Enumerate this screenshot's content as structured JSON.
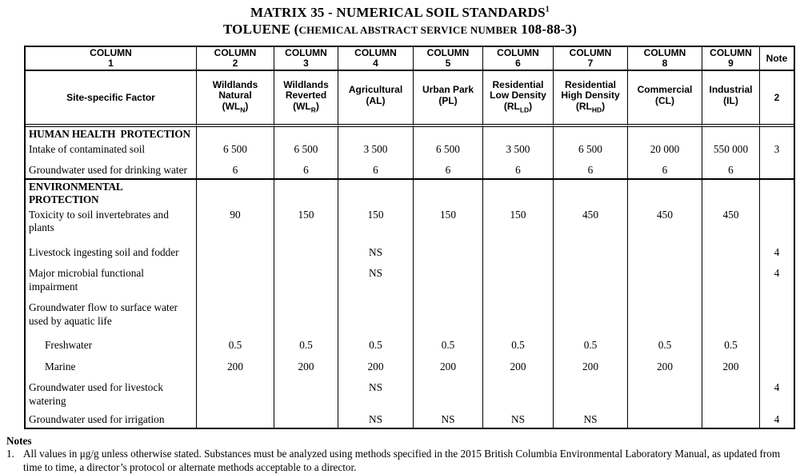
{
  "title": {
    "line1": "MATRIX 35 - NUMERICAL SOIL STANDARDS",
    "line1_superscript": "1",
    "line2_prefix": "TOLUENE (",
    "line2_smallcaps": "CHEMICAL ABSTRACT SERVICE NUMBER",
    "line2_suffix": " 108-88-3)"
  },
  "table": {
    "header_row1": [
      {
        "label": "COLUMN",
        "num": "1"
      },
      {
        "label": "COLUMN",
        "num": "2"
      },
      {
        "label": "COLUMN",
        "num": "3"
      },
      {
        "label": "COLUMN",
        "num": "4"
      },
      {
        "label": "COLUMN",
        "num": "5"
      },
      {
        "label": "COLUMN",
        "num": "6"
      },
      {
        "label": "COLUMN",
        "num": "7"
      },
      {
        "label": "COLUMN",
        "num": "8"
      },
      {
        "label": "COLUMN",
        "num": "9"
      },
      {
        "label": "Note",
        "num": ""
      }
    ],
    "header_row2": {
      "factor_label": "Site-specific Factor",
      "uses": [
        {
          "name": "Wildlands Natural",
          "abbr_pre": "(WL",
          "abbr_sub": "N",
          "abbr_post": ")"
        },
        {
          "name": "Wildlands Reverted",
          "abbr_pre": "(WL",
          "abbr_sub": "R",
          "abbr_post": ")"
        },
        {
          "name": "Agricultural",
          "abbr_pre": "(AL",
          "abbr_sub": "",
          "abbr_post": ")"
        },
        {
          "name": "Urban Park",
          "abbr_pre": "(PL",
          "abbr_sub": "",
          "abbr_post": ")"
        },
        {
          "name": "Residential Low Density",
          "abbr_pre": "(RL",
          "abbr_sub": "LD",
          "abbr_post": ")"
        },
        {
          "name": "Residential High Density",
          "abbr_pre": "(RL",
          "abbr_sub": "HD",
          "abbr_post": ")"
        },
        {
          "name": "Commercial",
          "abbr_pre": "(CL",
          "abbr_sub": "",
          "abbr_post": ")"
        },
        {
          "name": "Industrial",
          "abbr_pre": "(IL",
          "abbr_sub": "",
          "abbr_post": ")"
        }
      ],
      "note": "2"
    },
    "rows": [
      {
        "type": "section",
        "label": "HUMAN HEALTH  PROTECTION"
      },
      {
        "type": "factor",
        "label": "Intake of contaminated soil",
        "values": [
          "6 500",
          "6 500",
          "3 500",
          "6 500",
          "3 500",
          "6 500",
          "20 000",
          "550 000"
        ],
        "note": "3"
      },
      {
        "type": "factor",
        "label": "Groundwater used for drinking water",
        "values": [
          "6",
          "6",
          "6",
          "6",
          "6",
          "6",
          "6",
          "6"
        ],
        "note": ""
      },
      {
        "type": "section",
        "label": "ENVIRONMENTAL\nPROTECTION"
      },
      {
        "type": "factor",
        "label": "Toxicity to soil invertebrates and plants",
        "values": [
          "90",
          "150",
          "150",
          "150",
          "150",
          "450",
          "450",
          "450"
        ],
        "note": ""
      },
      {
        "type": "factor",
        "label": "Livestock ingesting soil and fodder",
        "values": [
          "",
          "",
          "NS",
          "",
          "",
          "",
          "",
          ""
        ],
        "note": "4"
      },
      {
        "type": "factor",
        "label": "Major microbial functional impairment",
        "values": [
          "",
          "",
          "NS",
          "",
          "",
          "",
          "",
          ""
        ],
        "note": "4"
      },
      {
        "type": "factor",
        "label": "Groundwater flow to surface water used by aquatic life",
        "values": [
          "",
          "",
          "",
          "",
          "",
          "",
          "",
          ""
        ],
        "note": ""
      },
      {
        "type": "factor",
        "indent": true,
        "label": "Freshwater",
        "values": [
          "0.5",
          "0.5",
          "0.5",
          "0.5",
          "0.5",
          "0.5",
          "0.5",
          "0.5"
        ],
        "note": ""
      },
      {
        "type": "factor",
        "indent": true,
        "label": "Marine",
        "values": [
          "200",
          "200",
          "200",
          "200",
          "200",
          "200",
          "200",
          "200"
        ],
        "note": ""
      },
      {
        "type": "factor",
        "label": "Groundwater used for livestock watering",
        "values": [
          "",
          "",
          "NS",
          "",
          "",
          "",
          "",
          ""
        ],
        "note": "4"
      },
      {
        "type": "factor",
        "label": "Groundwater used for irrigation",
        "values": [
          "",
          "",
          "NS",
          "NS",
          "NS",
          "NS",
          "",
          ""
        ],
        "note": "4"
      }
    ]
  },
  "notes": {
    "heading": "Notes",
    "items": [
      {
        "num": "1.",
        "text": "All values in μg/g unless otherwise stated.  Substances must be analyzed using methods specified in the 2015 British Columbia Environmental Laboratory Manual, as updated from time to time, a director’s protocol or alternate methods acceptable to a director."
      }
    ]
  }
}
